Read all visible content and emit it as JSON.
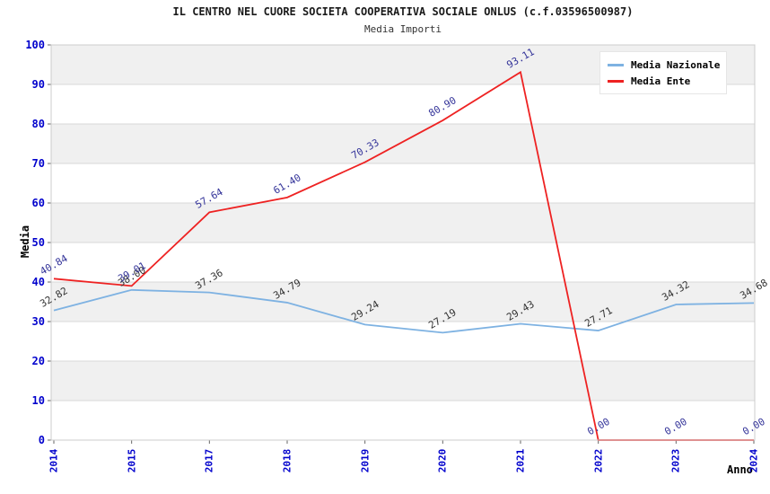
{
  "colors": {
    "band": "#f0f0f0",
    "grid": "#d9d9d9",
    "plot_border": "#cccccc",
    "tick_mark": "#666666",
    "axis_tick_text": "#0000cc",
    "nazionale_line": "#7eb2e2",
    "ente_line": "#ee2222",
    "nazionale_label": "#333333",
    "ente_label": "#333399"
  },
  "chart_data": {
    "type": "line",
    "title": "IL CENTRO NEL CUORE SOCIETA COOPERATIVA SOCIALE ONLUS (c.f.03596500987)",
    "subtitle": "Media Importi",
    "xlabel": "Anno",
    "ylabel": "Media",
    "categories": [
      "2014",
      "2015",
      "2017",
      "2018",
      "2019",
      "2020",
      "2021",
      "2022",
      "2023",
      "2024"
    ],
    "yticks": [
      0,
      10,
      20,
      30,
      40,
      50,
      60,
      70,
      80,
      90,
      100
    ],
    "ylim": [
      0,
      100
    ],
    "grid": "horizontal gridlines with alternating gray bands",
    "legend_position": "top-right inside plot",
    "point_label_format": "2 decimals, rotated -30deg above points",
    "series": [
      {
        "name": "Media Nazionale",
        "color": "#7eb2e2",
        "label_color": "#333333",
        "values": [
          32.82,
          38.0,
          37.36,
          34.79,
          29.24,
          27.19,
          29.43,
          27.71,
          34.32,
          34.68
        ]
      },
      {
        "name": "Media Ente",
        "color": "#ee2222",
        "label_color": "#333399",
        "values": [
          40.84,
          39.01,
          57.64,
          61.4,
          70.33,
          80.9,
          93.11,
          0.0,
          0.0,
          0.0
        ]
      }
    ]
  }
}
